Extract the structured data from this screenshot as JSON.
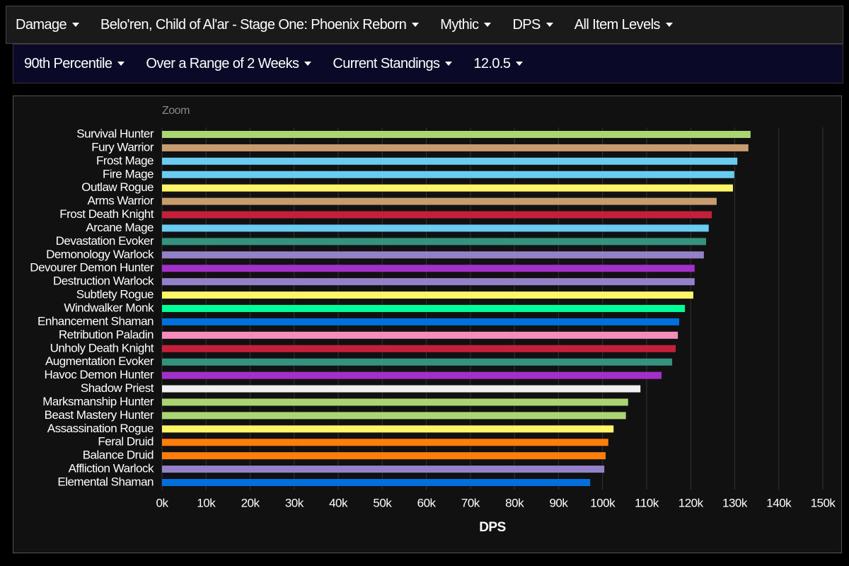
{
  "toolbar": {
    "row1": [
      "Damage",
      "Belo'ren, Child of Al'ar - Stage One: Phoenix Reborn",
      "Mythic",
      "DPS",
      "All Item Levels"
    ],
    "row2": [
      "90th Percentile",
      "Over a Range of 2 Weeks",
      "Current Standings",
      "12.0.5"
    ]
  },
  "chart_data": {
    "type": "bar",
    "orientation": "horizontal",
    "zoom_label": "Zoom",
    "x_label": "DPS",
    "categories": [
      "Survival Hunter",
      "Fury Warrior",
      "Frost Mage",
      "Fire Mage",
      "Outlaw Rogue",
      "Arms Warrior",
      "Frost Death Knight",
      "Arcane Mage",
      "Devastation Evoker",
      "Demonology Warlock",
      "Devourer Demon Hunter",
      "Destruction Warlock",
      "Subtlety Rogue",
      "Windwalker Monk",
      "Enhancement Shaman",
      "Retribution Paladin",
      "Unholy Death Knight",
      "Augmentation Evoker",
      "Havoc Demon Hunter",
      "Shadow Priest",
      "Marksmanship Hunter",
      "Beast Mastery Hunter",
      "Assassination Rogue",
      "Feral Druid",
      "Balance Druid",
      "Affliction Warlock",
      "Elemental Shaman"
    ],
    "values": [
      133600,
      133100,
      130600,
      129900,
      129600,
      125900,
      124800,
      124100,
      123500,
      123000,
      120900,
      120900,
      120600,
      118700,
      117400,
      117100,
      116600,
      115800,
      113400,
      108600,
      105800,
      105300,
      102500,
      101300,
      100700,
      100400,
      97200
    ],
    "colors": [
      "#abd473",
      "#c79c6e",
      "#69ccf0",
      "#69ccf0",
      "#fff569",
      "#c79c6e",
      "#c41f3b",
      "#69ccf0",
      "#33937f",
      "#9482c9",
      "#a330c9",
      "#9482c9",
      "#fff569",
      "#00ff96",
      "#0070de",
      "#f58cba",
      "#c41f3b",
      "#33937f",
      "#a330c9",
      "#f0f0f0",
      "#abd473",
      "#abd473",
      "#fff569",
      "#ff7d0a",
      "#ff7d0a",
      "#9482c9",
      "#0070de"
    ],
    "xlim": [
      0,
      150000
    ],
    "xticks": [
      {
        "value": 0,
        "label": "0k"
      },
      {
        "value": 10000,
        "label": "10k"
      },
      {
        "value": 20000,
        "label": "20k"
      },
      {
        "value": 30000,
        "label": "30k"
      },
      {
        "value": 40000,
        "label": "40k"
      },
      {
        "value": 50000,
        "label": "50k"
      },
      {
        "value": 60000,
        "label": "60k"
      },
      {
        "value": 70000,
        "label": "70k"
      },
      {
        "value": 80000,
        "label": "80k"
      },
      {
        "value": 90000,
        "label": "90k"
      },
      {
        "value": 100000,
        "label": "100k"
      },
      {
        "value": 110000,
        "label": "110k"
      },
      {
        "value": 120000,
        "label": "120k"
      },
      {
        "value": 130000,
        "label": "130k"
      },
      {
        "value": 140000,
        "label": "140k"
      },
      {
        "value": 150000,
        "label": "150k"
      }
    ],
    "grid": true
  }
}
